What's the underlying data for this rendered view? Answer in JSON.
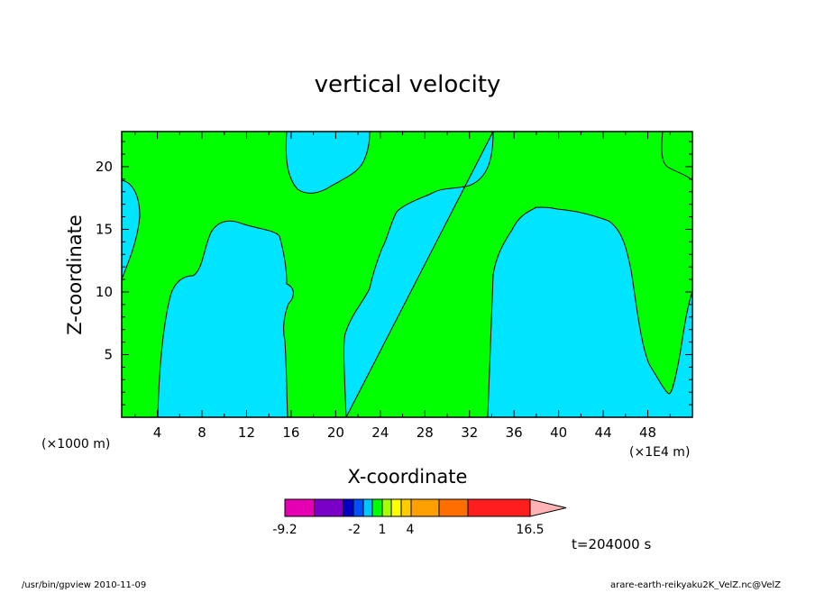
{
  "chart_data": {
    "type": "heatmap",
    "title": "vertical velocity",
    "xlabel": "X-coordinate",
    "ylabel": "Z-coordinate",
    "x_unit_left": "(×1000 m)",
    "x_unit_right": "(×1E4 m)",
    "xlim": [
      0.8,
      52.0
    ],
    "ylim": [
      0.0,
      22.8
    ],
    "xticks": [
      4,
      8,
      12,
      16,
      20,
      24,
      28,
      32,
      36,
      40,
      44,
      48
    ],
    "yticks": [
      5,
      10,
      15,
      20
    ],
    "grid": false,
    "colors": {
      "positive_region": "#00ff00",
      "negative_region": "#00e5ff",
      "contour_line": "#000000"
    },
    "regions": [
      {
        "sign": "negative",
        "x": 4,
        "x_range": [
          3,
          15
        ],
        "z_range": [
          0,
          15.8
        ]
      },
      {
        "sign": "negative",
        "x": 20,
        "x_range": [
          15,
          18.5
        ],
        "z_range": [
          17.8,
          22.8
        ]
      },
      {
        "sign": "negative",
        "x": 28,
        "x_range": [
          19.5,
          52
        ],
        "z_range": [
          0,
          22.8
        ]
      },
      {
        "sign": "negative",
        "x": 1,
        "x_range": [
          0.8,
          2.3
        ],
        "z_range": [
          11,
          19
        ]
      },
      {
        "sign": "positive",
        "x": 40,
        "x_range": [
          33,
          52
        ],
        "z_range": [
          0,
          17
        ]
      }
    ],
    "colorbar": {
      "tick_labels": [
        "-9.2",
        "-2",
        "1",
        "4",
        "16.5"
      ],
      "colors": [
        "#e600b4",
        "#7a00c8",
        "#0000c0",
        "#0050ff",
        "#00c8ff",
        "#00ff00",
        "#aaff00",
        "#ffff00",
        "#ffcc00",
        "#ffa000",
        "#ff6e00",
        "#ff1e1e",
        "#ff7878",
        "#ffb4b4"
      ]
    },
    "time_label": "t=204000 s"
  },
  "footer": {
    "left": "/usr/bin/gpview  2010-11-09",
    "right": "arare-earth-reikyaku2K_VelZ.nc@VelZ"
  }
}
